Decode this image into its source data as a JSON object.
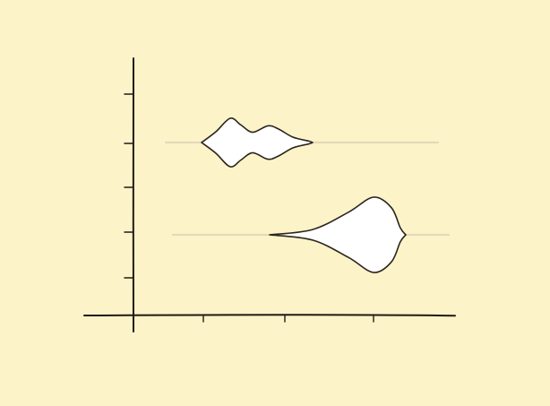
{
  "chart_data": {
    "type": "violin",
    "title": "",
    "xlabel": "",
    "ylabel": "",
    "x_ticks": 3,
    "y_ticks": 5,
    "grid": false,
    "legend": "none",
    "colors": {
      "background": "#fdf3c8",
      "violin_fill": "#ffffff",
      "violin_stroke": "#2a241c",
      "baseline": "#e3d9b8",
      "axis": "#1f1a14"
    },
    "series": [
      {
        "range": [
          0.36,
          3.4
        ],
        "density": [
          [
            0.76,
            0.0
          ],
          [
            0.92,
            0.4
          ],
          [
            1.08,
            0.9
          ],
          [
            1.2,
            0.65
          ],
          [
            1.33,
            0.38
          ],
          [
            1.5,
            0.62
          ],
          [
            1.62,
            0.5
          ],
          [
            1.78,
            0.2
          ],
          [
            1.96,
            0.05
          ],
          [
            2.0,
            0.0
          ]
        ]
      },
      {
        "range": [
          0.44,
          3.52
        ],
        "density": [
          [
            1.52,
            0.0
          ],
          [
            2.0,
            0.14
          ],
          [
            2.4,
            0.6
          ],
          [
            2.68,
            1.0
          ],
          [
            2.88,
            0.72
          ],
          [
            2.98,
            0.18
          ],
          [
            3.04,
            0.0
          ]
        ]
      }
    ]
  }
}
